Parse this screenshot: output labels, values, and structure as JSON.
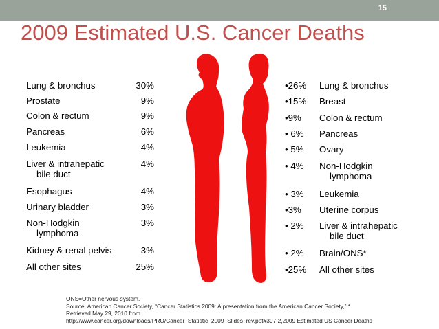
{
  "slide": {
    "page_number": "15",
    "title": "2009 Estimated U.S. Cancer Deaths"
  },
  "colors": {
    "accent": "#c0504d",
    "figure": "#ee1111",
    "topbar": "#9aa39a"
  },
  "male": [
    {
      "name": "Lung & bronchus",
      "pct": "30%"
    },
    {
      "name": "Prostate",
      "pct": "9%"
    },
    {
      "name": "Colon & rectum",
      "pct": "9%"
    },
    {
      "name": "Pancreas",
      "pct": "6%"
    },
    {
      "name": "Leukemia",
      "pct": "4%"
    },
    {
      "name": "Liver & intrahepatic",
      "name2": "bile duct",
      "pct": "4%"
    },
    {
      "name": "Esophagus",
      "pct": "4%"
    },
    {
      "name": "Urinary bladder",
      "pct": "3%"
    },
    {
      "name": "Non-Hodgkin",
      "name2": "lymphoma",
      "pct": "3%"
    },
    {
      "name": "Kidney & renal pelvis",
      "pct": "3%"
    },
    {
      "name": "All other sites",
      "pct": "25%"
    }
  ],
  "female": [
    {
      "pct": "•26%",
      "name": "Lung & bronchus"
    },
    {
      "pct": "•15%",
      "name": "Breast"
    },
    {
      "pct": "•9%",
      "name": "Colon & rectum"
    },
    {
      "pct": "•  6%",
      "name": "Pancreas"
    },
    {
      "pct": "•  5%",
      "name": "Ovary"
    },
    {
      "pct": "•  4%",
      "name": "Non-Hodgkin",
      "name2": "lymphoma"
    },
    {
      "pct": "•  3%",
      "name": "Leukemia"
    },
    {
      "pct": "•3%",
      "name": "Uterine corpus"
    },
    {
      "pct": "•  2%",
      "name": " Liver & intrahepatic",
      "name2": "bile duct"
    },
    {
      "pct": "•  2%",
      "name": "Brain/ONS*"
    },
    {
      "pct": "•25%",
      "name": "All other sites"
    }
  ],
  "footnote": {
    "line1": "ONS=Other nervous system.",
    "line2": "Source: American Cancer Society, “Cancer Statistics 2009: A presentation from the American Cancer Society,” *",
    "line3": "Retrieved May 29, 2010 from",
    "line4": "http://www.cancer.org/downloads/PRO/Cancer_Statistic_2009_Slides_rev.ppt#397,2,2009 Estimated US Cancer Deaths"
  }
}
